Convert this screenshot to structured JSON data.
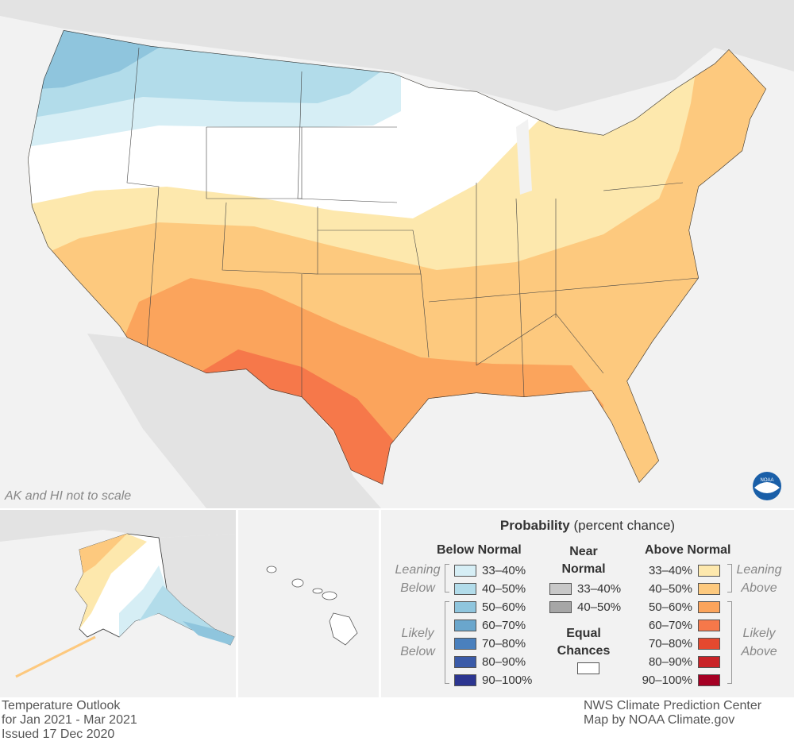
{
  "map": {
    "note": "AK and HI not to scale",
    "logo": "NOAA"
  },
  "legend": {
    "title_bold": "Probability",
    "title_rest": "(percent chance)",
    "below": {
      "heading": "Below Normal",
      "leaning_label": [
        "Leaning",
        "Below"
      ],
      "likely_label": [
        "Likely",
        "Below"
      ],
      "items": [
        {
          "label": "33–40%",
          "color": "#d6eef5"
        },
        {
          "label": "40–50%",
          "color": "#b2dcea"
        },
        {
          "label": "50–60%",
          "color": "#8fc5dd"
        },
        {
          "label": "60–70%",
          "color": "#6aa6cc"
        },
        {
          "label": "70–80%",
          "color": "#4a80bd"
        },
        {
          "label": "80–90%",
          "color": "#3a5aa8"
        },
        {
          "label": "90–100%",
          "color": "#2c3590"
        }
      ]
    },
    "near": {
      "heading": [
        "Near",
        "Normal"
      ],
      "items": [
        {
          "label": "33–40%",
          "color": "#c8c8c8"
        },
        {
          "label": "40–50%",
          "color": "#a6a6a6"
        }
      ],
      "equal_heading": [
        "Equal",
        "Chances"
      ],
      "equal_color": "#ffffff"
    },
    "above": {
      "heading": "Above Normal",
      "leaning_label": [
        "Leaning",
        "Above"
      ],
      "likely_label": [
        "Likely",
        "Above"
      ],
      "items": [
        {
          "label": "33–40%",
          "color": "#fde8ad"
        },
        {
          "label": "40–50%",
          "color": "#fdc97e"
        },
        {
          "label": "50–60%",
          "color": "#fba45c"
        },
        {
          "label": "60–70%",
          "color": "#f6784a"
        },
        {
          "label": "70–80%",
          "color": "#e4492f"
        },
        {
          "label": "80–90%",
          "color": "#c92227"
        },
        {
          "label": "90–100%",
          "color": "#a50024"
        }
      ]
    }
  },
  "footer": {
    "left": [
      "Temperature Outlook",
      "for Jan 2021 - Mar 2021",
      "Issued 17 Dec 2020"
    ],
    "right": [
      "NWS Climate Prediction Center",
      "Map by NOAA Climate.gov"
    ]
  }
}
